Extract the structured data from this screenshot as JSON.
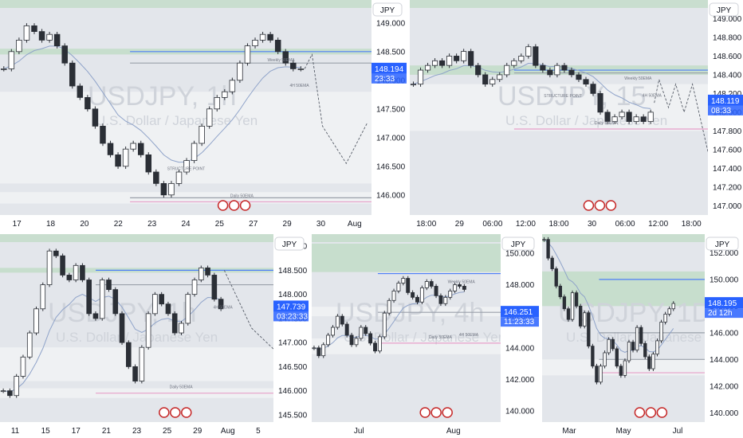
{
  "colors": {
    "bg": "#e3e6eb",
    "axis_bg": "#ffffff",
    "candle": "#2b2f36",
    "ema": "#8fa3c9",
    "supply": "#c2dcc8",
    "demand": "#f1f2f5",
    "blue_line": "#4d7ef7",
    "pink_line": "#e7a0c9",
    "price_tag": "#2962ff",
    "green_line": "#4caf50"
  },
  "icons": [
    "lightning-icon",
    "us-flag-icon",
    "target-icon"
  ],
  "panels": [
    {
      "name": "chart-usdjpy-1h-a",
      "currency": "JPY",
      "watermark": "USDJPY, 1h",
      "watermark_sub": "U.S. Dollar / Japanese Yen",
      "labels": {
        "structure": "STRUCTURE POINT",
        "ema": "4H 50EMA",
        "weekly": "Weekly 50EMA",
        "daily": "Daily 50EMA"
      },
      "chart_data": {
        "type": "candlestick",
        "title": "USDJPY, 1h",
        "x_ticks": [
          "17",
          "18",
          "20",
          "22",
          "23",
          "24",
          "25",
          "27",
          "29",
          "30",
          "Aug"
        ],
        "y_ticks": [
          149.0,
          148.5,
          148.0,
          147.5,
          147.0,
          146.5,
          146.0
        ],
        "ylim": [
          145.65,
          149.4
        ],
        "close_path": [
          148.2,
          148.5,
          148.7,
          148.95,
          148.85,
          148.7,
          148.8,
          148.6,
          148.3,
          147.9,
          147.7,
          147.5,
          147.2,
          146.9,
          146.7,
          146.5,
          146.8,
          146.9,
          146.7,
          146.4,
          146.2,
          146.0,
          146.2,
          146.4,
          146.6,
          146.9,
          147.2,
          147.5,
          147.7,
          147.8,
          148.0,
          148.3,
          148.6,
          148.7,
          148.8,
          148.7,
          148.5,
          148.3,
          148.2,
          148.2
        ],
        "price": "148.194",
        "countdown": "23:33",
        "levels": [
          148.5,
          148.3,
          145.95,
          145.88
        ],
        "projection": [
          148.2,
          148.45,
          147.2,
          146.55,
          147.25
        ]
      }
    },
    {
      "name": "chart-usdjpy-15m",
      "currency": "JPY",
      "watermark": "USDJPY, 15",
      "watermark_sub": "U.S. Dollar / Japanese Yen",
      "labels": {
        "structure": "STRUCTURE POINT",
        "ema": "4H 50EMA",
        "weekly": "Weekly 50EMA",
        "daily": "Daily 50EMA"
      },
      "chart_data": {
        "type": "candlestick",
        "title": "USDJPY, 15",
        "x_ticks": [
          "18:00",
          "29",
          "06:00",
          "12:00",
          "18:00",
          "30",
          "06:00",
          "12:00",
          "18:00"
        ],
        "y_ticks": [
          149.0,
          148.8,
          148.6,
          148.4,
          148.2,
          148.0,
          147.8,
          147.6,
          147.4,
          147.2,
          147.0
        ],
        "ylim": [
          146.9,
          149.2
        ],
        "close_path": [
          148.3,
          148.45,
          148.5,
          148.55,
          148.5,
          148.6,
          148.55,
          148.65,
          148.5,
          148.4,
          148.3,
          148.35,
          148.4,
          148.5,
          148.55,
          148.6,
          148.7,
          148.5,
          148.45,
          148.4,
          148.5,
          148.45,
          148.4,
          148.35,
          148.3,
          148.2,
          148.0,
          147.9,
          147.95,
          148.0,
          147.9,
          147.95,
          147.9,
          148.0
        ],
        "price": "148.119",
        "countdown": "08:33",
        "levels": [
          148.45,
          148.42,
          147.82
        ],
        "projection": [
          148.1,
          148.35,
          148.05,
          148.3,
          148.0,
          148.3,
          147.3
        ]
      }
    },
    {
      "name": "chart-usdjpy-1h-b",
      "currency": "JPY",
      "watermark": "USDJPY, 1h",
      "watermark_sub": "U.S. Dollar / Japanese Yen",
      "labels": {
        "structure": "",
        "ema": "4H 50EMA",
        "weekly": "",
        "daily": "Daily 50EMA"
      },
      "chart_data": {
        "type": "candlestick",
        "title": "USDJPY, 1h",
        "x_ticks": [
          "11",
          "15",
          "17",
          "21",
          "23",
          "25",
          "29",
          "Aug",
          "5"
        ],
        "y_ticks": [
          149.0,
          148.5,
          148.0,
          147.5,
          147.0,
          146.5,
          146.0,
          145.5
        ],
        "ylim": [
          145.35,
          149.25
        ],
        "close_path": [
          146.0,
          145.9,
          146.3,
          146.7,
          147.2,
          147.7,
          148.2,
          148.9,
          148.8,
          148.4,
          148.3,
          148.6,
          148.3,
          147.6,
          147.5,
          148.3,
          148.1,
          147.6,
          147.0,
          146.5,
          146.2,
          146.9,
          147.6,
          148.0,
          147.8,
          147.6,
          147.2,
          147.4,
          148.0,
          148.3,
          148.55,
          148.4,
          147.9,
          147.7
        ],
        "price": "147.739",
        "countdown": "03:23:33",
        "levels": [
          148.5,
          148.2,
          145.95
        ],
        "projection": [
          148.5,
          147.3,
          146.65
        ]
      }
    },
    {
      "name": "chart-usdjpy-4h",
      "currency": "JPY",
      "watermark": "USDJPY, 4h",
      "watermark_sub": "U.S. Dollar / Japanese Yen",
      "labels": {
        "structure": "",
        "ema": "4H 50EMA",
        "weekly": "Weekly 50EMA",
        "daily": "Daily 50EMA"
      },
      "chart_data": {
        "type": "candlestick",
        "title": "USDJPY, 4h",
        "x_ticks": [
          "Jul",
          "Aug"
        ],
        "y_ticks": [
          150.0,
          148.0,
          146.0,
          144.0,
          142.0,
          140.0
        ],
        "ylim": [
          139.3,
          151.2
        ],
        "close_path": [
          144.0,
          143.5,
          144.2,
          144.8,
          145.3,
          146.0,
          145.5,
          144.8,
          144.2,
          144.6,
          145.3,
          144.9,
          144.3,
          143.8,
          144.7,
          146.2,
          147.0,
          147.6,
          148.1,
          148.4,
          147.5,
          147.2,
          146.9,
          147.8,
          148.2,
          147.9,
          147.3,
          146.8,
          147.2,
          147.6,
          148.0,
          147.9,
          147.7
        ],
        "price": "146.251",
        "countdown": "11:23:33",
        "levels": [
          148.7,
          146.25,
          144.3
        ],
        "projection": [
          148.0,
          146.7,
          148.6
        ]
      }
    },
    {
      "name": "chart-usdjpy-1d",
      "currency": "JPY",
      "watermark": "USDJPY, 1D",
      "watermark_sub": "U.S. Dollar / Japanese Yen",
      "labels": {
        "structure": "",
        "ema": "",
        "weekly": "",
        "daily": ""
      },
      "chart_data": {
        "type": "candlestick",
        "title": "USDJPY, 1D",
        "x_ticks": [
          "Mar",
          "May",
          "Jul"
        ],
        "y_ticks": [
          152.0,
          150.0,
          148.0,
          146.0,
          144.0,
          142.0,
          140.0
        ],
        "ylim": [
          139.3,
          153.4
        ],
        "close_path": [
          153.0,
          151.6,
          150.8,
          149.5,
          148.7,
          147.8,
          147.0,
          149.0,
          148.0,
          146.5,
          147.5,
          145.0,
          143.5,
          142.3,
          143.5,
          144.5,
          145.5,
          144.8,
          143.5,
          142.8,
          143.9,
          145.3,
          144.7,
          146.4,
          145.2,
          144.2,
          143.3,
          144.4,
          145.4,
          146.8,
          147.4,
          147.8,
          148.2
        ],
        "price": "148.195",
        "countdown": "2d 12h",
        "levels": [
          150.0,
          146.0,
          144.0,
          143.0
        ],
        "projection": []
      }
    }
  ]
}
